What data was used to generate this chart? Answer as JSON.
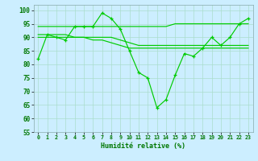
{
  "xlabel": "Humidité relative (%)",
  "series_main": [
    82,
    91,
    90,
    89,
    94,
    94,
    94,
    99,
    97,
    93,
    85,
    77,
    75,
    64,
    67,
    76,
    84,
    83,
    86,
    90,
    87,
    90,
    95,
    97
  ],
  "series_flat1": [
    90,
    90,
    90,
    90,
    90,
    90,
    90,
    90,
    90,
    89,
    88,
    87,
    87,
    87,
    87,
    87,
    87,
    87,
    87,
    87,
    87,
    87,
    87,
    87
  ],
  "series_flat2": [
    94,
    94,
    94,
    94,
    94,
    94,
    94,
    94,
    94,
    94,
    94,
    94,
    94,
    94,
    94,
    95,
    95,
    95,
    95,
    95,
    95,
    95,
    95,
    95
  ],
  "series_flat3": [
    91,
    91,
    91,
    91,
    90,
    90,
    89,
    89,
    88,
    87,
    86,
    86,
    86,
    86,
    86,
    86,
    86,
    86,
    86,
    86,
    86,
    86,
    86,
    86
  ],
  "x": [
    0,
    1,
    2,
    3,
    4,
    5,
    6,
    7,
    8,
    9,
    10,
    11,
    12,
    13,
    14,
    15,
    16,
    17,
    18,
    19,
    20,
    21,
    22,
    23
  ],
  "ylim": [
    55,
    102
  ],
  "yticks": [
    55,
    60,
    65,
    70,
    75,
    80,
    85,
    90,
    95,
    100
  ],
  "xtick_labels": [
    "0",
    "1",
    "2",
    "3",
    "4",
    "5",
    "6",
    "7",
    "8",
    "9",
    "10",
    "11",
    "12",
    "13",
    "14",
    "15",
    "16",
    "17",
    "18",
    "19",
    "20",
    "21",
    "22",
    "23"
  ],
  "line_color": "#00cc00",
  "bg_color": "#cceeff",
  "grid_color": "#aaddcc",
  "label_color": "#007700",
  "tick_color": "#007700"
}
